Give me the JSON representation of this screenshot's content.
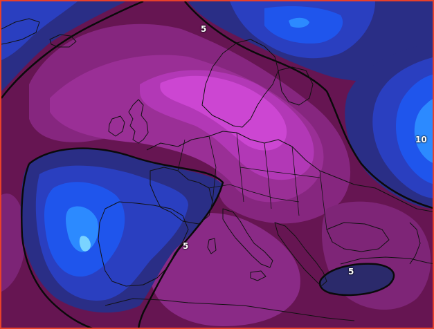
{
  "colors": {
    "frame": "#e8402a",
    "coast": "#111111",
    "contour": "#0a0a0a",
    "label": "#ffffff",
    "field_low_deep": "#9a1a78",
    "field_mid": "#7a1a63",
    "field_base": "#661552",
    "field_warm": "#8e2b8e",
    "field_hot": "#c33ec9",
    "field_peak": "#d24ad8",
    "cool_dark": "#2e2a7a",
    "cool_mid": "#2040c8",
    "cool_bright": "#1855f0",
    "cool_core": "#2a8cff",
    "cool_center": "#7ad4ff"
  },
  "contour_labels": [
    "5",
    "5",
    "5",
    "10"
  ],
  "regions": [
    "north-atlantic-high",
    "scandinavia-maximum",
    "iberia-minimum",
    "russia-minimum",
    "greece-minimum",
    "north-sea-minimum"
  ]
}
